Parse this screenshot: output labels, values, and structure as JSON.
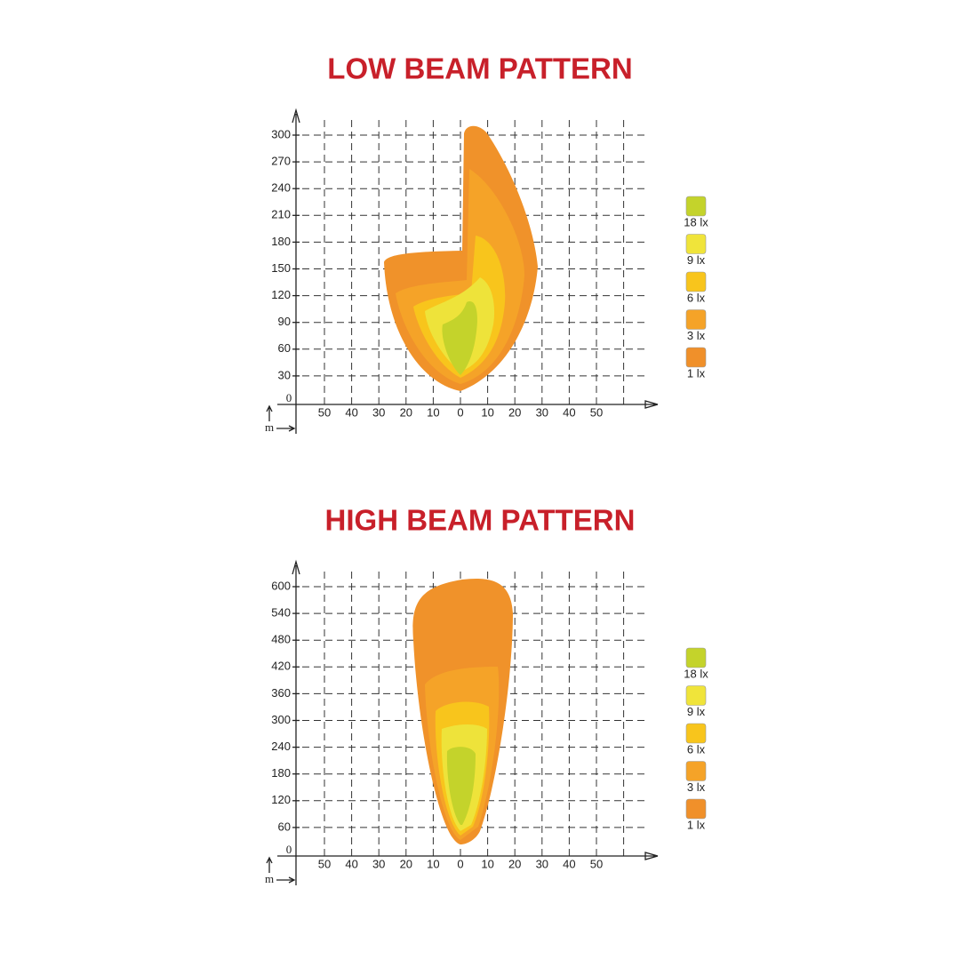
{
  "panels": [
    {
      "title": "LOW BEAM PATTERN",
      "y_ticks": [
        300,
        270,
        240,
        210,
        180,
        150,
        120,
        90,
        60,
        30
      ],
      "origin_label": "0",
      "x_ticks": [
        50,
        40,
        30,
        20,
        10,
        0,
        10,
        20,
        30,
        40,
        50
      ],
      "unit_label": "m",
      "legend": [
        "18 lx",
        "9 lx",
        "6 lx",
        "3 lx",
        "1 lx"
      ]
    },
    {
      "title": "HIGH BEAM PATTERN",
      "y_ticks": [
        600,
        540,
        480,
        420,
        360,
        300,
        240,
        180,
        120,
        60
      ],
      "origin_label": "0",
      "x_ticks": [
        50,
        40,
        30,
        20,
        10,
        0,
        10,
        20,
        30,
        40,
        50
      ],
      "unit_label": "m",
      "legend": [
        "18 lx",
        "9 lx",
        "6 lx",
        "3 lx",
        "1 lx"
      ]
    }
  ]
}
